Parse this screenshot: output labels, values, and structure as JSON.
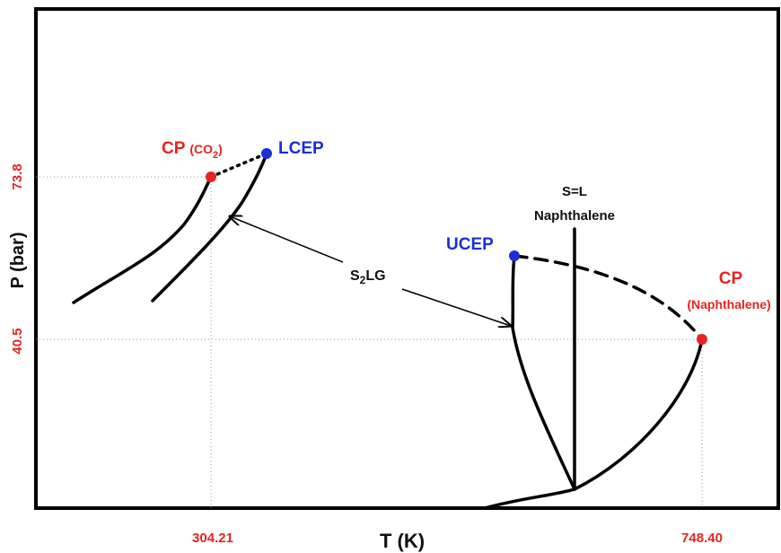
{
  "axes": {
    "y_label": "P (bar)",
    "x_label": "T (K)",
    "y_ticks": [
      "73.8",
      "40.5"
    ],
    "x_ticks": [
      "304.21",
      "748.40"
    ]
  },
  "points": {
    "cp_co2": {
      "label": "CP",
      "formula": "(CO",
      "subscript": "2",
      "close": ")"
    },
    "lcep": {
      "label": "LCEP"
    },
    "ucep": {
      "label": "UCEP"
    },
    "cp_naphthalene": {
      "label": "CP",
      "sub_label": "(Naphthalene)"
    }
  },
  "lines": {
    "s_equals_l": {
      "label": "S=L",
      "sub_label": "Naphthalene"
    },
    "s2lg": {
      "prefix": "S",
      "subscript": "2",
      "suffix": "LG"
    }
  }
}
